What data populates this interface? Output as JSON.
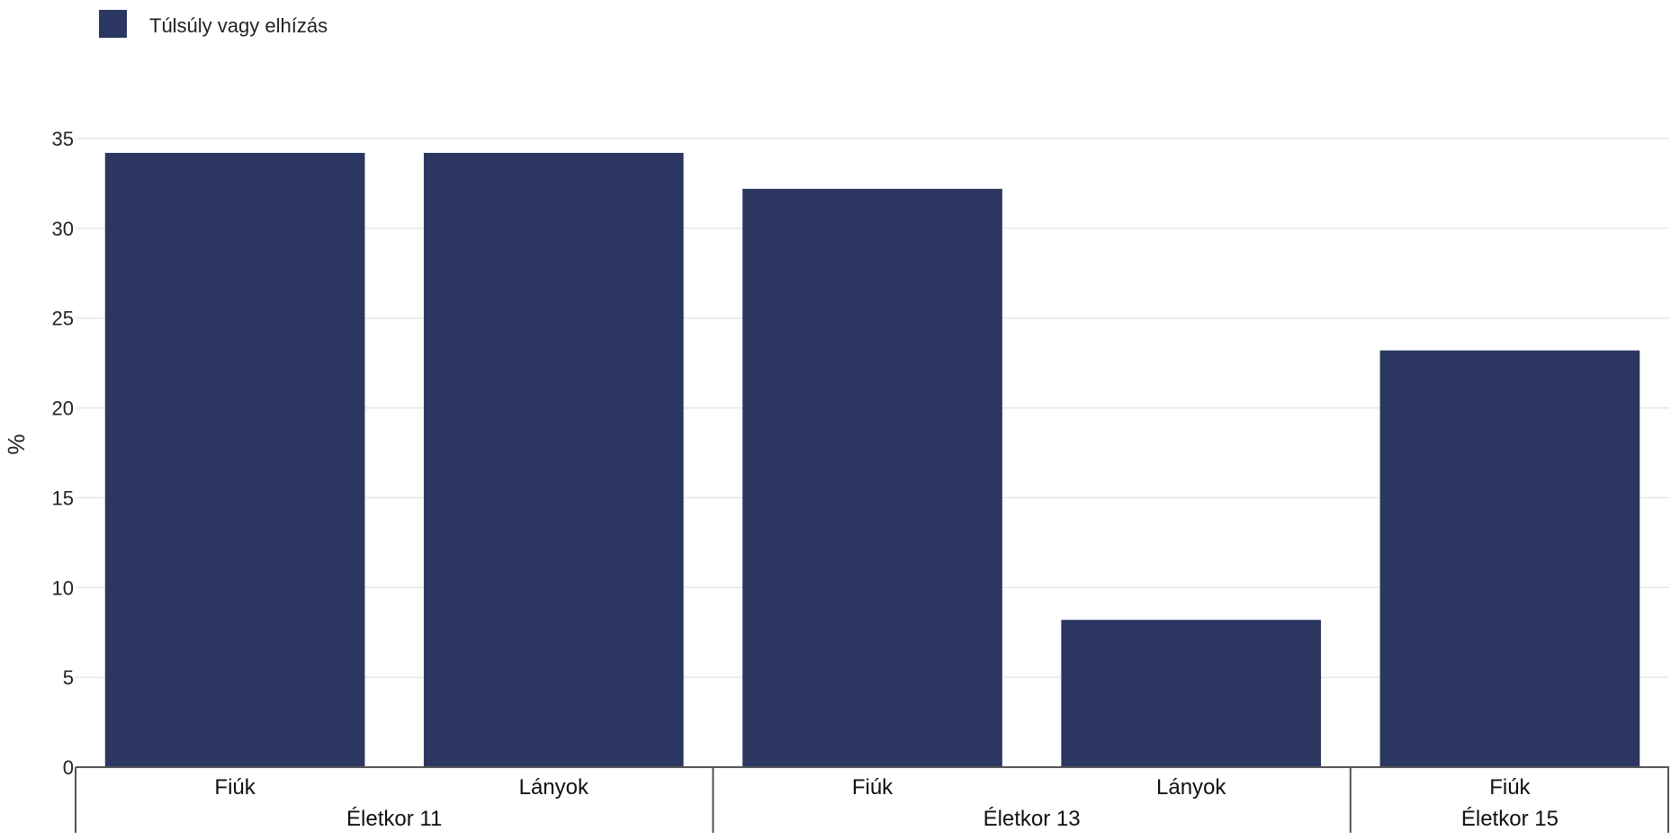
{
  "chart_data": {
    "type": "bar",
    "title": "",
    "xlabel": "",
    "ylabel": "%",
    "ylim": [
      0,
      35
    ],
    "yticks": [
      0,
      5,
      10,
      15,
      20,
      25,
      30,
      35
    ],
    "grid": true,
    "legend": {
      "placement": "top-left",
      "entries": [
        "Túlsúly vagy elhízás"
      ]
    },
    "groups": [
      {
        "label": "Életkor 11",
        "categories": [
          "Fiúk",
          "Lányok"
        ]
      },
      {
        "label": "Életkor 13",
        "categories": [
          "Fiúk",
          "Lányok"
        ]
      },
      {
        "label": "Életkor 15",
        "categories": [
          "Fiúk"
        ]
      }
    ],
    "categories": [
      "Fiúk",
      "Lányok",
      "Fiúk",
      "Lányok",
      "Fiúk"
    ],
    "series": [
      {
        "name": "Túlsúly vagy elhízás",
        "color": "#2b3761",
        "values": [
          34.2,
          34.2,
          32.2,
          8.2,
          23.2
        ]
      }
    ]
  }
}
